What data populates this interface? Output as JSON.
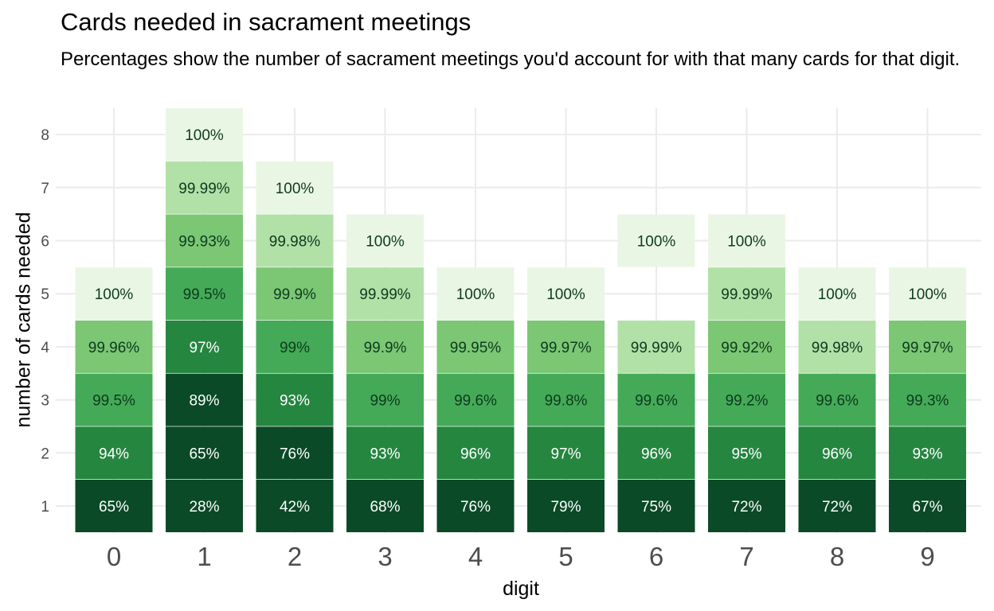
{
  "chart_data": {
    "type": "heatmap",
    "title": "Cards needed in sacrament meetings",
    "subtitle": "Percentages show the number of sacrament meetings you'd account for with that many cards for that digit.",
    "xlabel": "digit",
    "ylabel": "number of cards needed",
    "x_categories": [
      "0",
      "1",
      "2",
      "3",
      "4",
      "5",
      "6",
      "7",
      "8",
      "9"
    ],
    "y_ticks": [
      "1",
      "2",
      "3",
      "4",
      "5",
      "6",
      "7",
      "8"
    ],
    "grid": true,
    "legend": "none",
    "colors": {
      "scale": [
        "#eaf6e4",
        "#b2e1a8",
        "#7bc774",
        "#44aa57",
        "#258640",
        "#0a4a26"
      ],
      "grid": "#ebebeb",
      "light_label": "#ffffff",
      "dark_label": "#0d3b1e"
    },
    "series": [
      {
        "digit": "0",
        "cumulative_pct": [
          65,
          94,
          99.5,
          99.96,
          100
        ],
        "labels": [
          "65%",
          "94%",
          "99.5%",
          "99.96%",
          "100%"
        ]
      },
      {
        "digit": "1",
        "cumulative_pct": [
          28,
          65,
          89,
          97,
          99.5,
          99.93,
          99.99,
          100
        ],
        "labels": [
          "28%",
          "65%",
          "89%",
          "97%",
          "99.5%",
          "99.93%",
          "99.99%",
          "100%"
        ]
      },
      {
        "digit": "2",
        "cumulative_pct": [
          42,
          76,
          93,
          99,
          99.9,
          99.98,
          100
        ],
        "labels": [
          "42%",
          "76%",
          "93%",
          "99%",
          "99.9%",
          "99.98%",
          "100%"
        ]
      },
      {
        "digit": "3",
        "cumulative_pct": [
          68,
          93,
          99,
          99.9,
          99.99,
          100
        ],
        "labels": [
          "68%",
          "93%",
          "99%",
          "99.9%",
          "99.99%",
          "100%"
        ]
      },
      {
        "digit": "4",
        "cumulative_pct": [
          76,
          96,
          99.6,
          99.95,
          100
        ],
        "labels": [
          "76%",
          "96%",
          "99.6%",
          "99.95%",
          "100%"
        ]
      },
      {
        "digit": "5",
        "cumulative_pct": [
          79,
          97,
          99.8,
          99.97,
          100
        ],
        "labels": [
          "79%",
          "97%",
          "99.8%",
          "99.97%",
          "100%"
        ]
      },
      {
        "digit": "6",
        "cards": [
          1,
          2,
          3,
          4,
          6
        ],
        "cumulative_pct": [
          75,
          96,
          99.6,
          99.99,
          100
        ],
        "labels": [
          "75%",
          "96%",
          "99.6%",
          "99.99%",
          "100%"
        ]
      },
      {
        "digit": "7",
        "cumulative_pct": [
          72,
          95,
          99.2,
          99.92,
          99.99,
          100
        ],
        "labels": [
          "72%",
          "95%",
          "99.2%",
          "99.92%",
          "99.99%",
          "100%"
        ]
      },
      {
        "digit": "8",
        "cumulative_pct": [
          72,
          96,
          99.6,
          99.98,
          100
        ],
        "labels": [
          "72%",
          "96%",
          "99.6%",
          "99.98%",
          "100%"
        ]
      },
      {
        "digit": "9",
        "cumulative_pct": [
          67,
          93,
          99.3,
          99.97,
          100
        ],
        "labels": [
          "67%",
          "93%",
          "99.3%",
          "99.97%",
          "100%"
        ]
      }
    ]
  }
}
